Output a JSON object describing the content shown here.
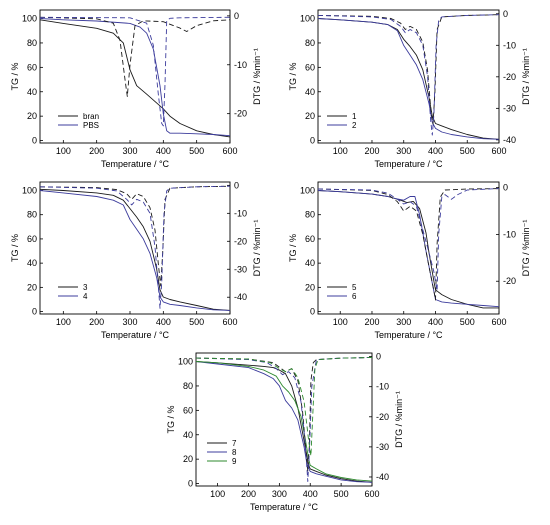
{
  "colors": {
    "black": "#1a1a1a",
    "blue": "#3c3c9c",
    "green": "#2e8a2e",
    "frame": "#000000"
  },
  "chart_data": [
    {
      "type": "line",
      "xlabel": "Temperature / °C",
      "ylabel": "TG / %",
      "y2label": "DTG / %min⁻¹",
      "xlim": [
        30,
        600
      ],
      "ylim": [
        -2,
        107
      ],
      "y2lim": [
        -26,
        1.2
      ],
      "xticks": [
        100,
        200,
        300,
        400,
        500,
        600
      ],
      "yticks": [
        0,
        20,
        40,
        60,
        80,
        100
      ],
      "y2ticks": [
        0,
        -10,
        -20
      ],
      "series": [
        {
          "name": "bran",
          "axis": "TG",
          "color": "black",
          "dash": false,
          "x": [
            30,
            100,
            200,
            250,
            280,
            300,
            320,
            350,
            400,
            420,
            450,
            500,
            550,
            600
          ],
          "y": [
            99,
            96,
            92,
            88,
            80,
            58,
            45,
            38,
            26,
            20,
            14,
            8,
            5,
            3
          ]
        },
        {
          "name": "PBS",
          "axis": "TG",
          "color": "blue",
          "dash": false,
          "x": [
            30,
            100,
            200,
            300,
            330,
            350,
            370,
            390,
            400,
            410,
            420,
            450,
            500,
            550,
            600
          ],
          "y": [
            100,
            99,
            98,
            96,
            93,
            88,
            75,
            45,
            22,
            8,
            6,
            6,
            5.5,
            5,
            4
          ]
        },
        {
          "name": "",
          "axis": "DTG",
          "color": "black",
          "dash": true,
          "x": [
            30,
            200,
            250,
            270,
            285,
            292,
            300,
            315,
            340,
            400,
            450,
            470,
            500,
            550,
            600
          ],
          "y": [
            -0.3,
            -0.6,
            -1.5,
            -5,
            -13,
            -16.5,
            -10,
            -2,
            -1,
            -1.2,
            -2.5,
            -3.2,
            -2,
            -1,
            -0.8
          ]
        },
        {
          "name": "",
          "axis": "DTG",
          "color": "blue",
          "dash": true,
          "x": [
            30,
            300,
            350,
            370,
            385,
            395,
            400,
            405,
            410,
            420,
            450,
            600
          ],
          "y": [
            -0.3,
            -0.4,
            -1.5,
            -6,
            -16,
            -22,
            -22.5,
            -14,
            -1,
            -0.5,
            -0.4,
            -0.3
          ]
        }
      ]
    },
    {
      "type": "line",
      "xlabel": "Temperature / °C",
      "ylabel": "TG / %",
      "y2label": "DTG / %min⁻¹",
      "xlim": [
        30,
        600
      ],
      "ylim": [
        -2,
        107
      ],
      "y2lim": [
        -41,
        1.2
      ],
      "xticks": [
        100,
        200,
        300,
        400,
        500,
        600
      ],
      "yticks": [
        0,
        20,
        40,
        60,
        80,
        100
      ],
      "y2ticks": [
        0,
        -10,
        -20,
        -30,
        -40
      ],
      "series": [
        {
          "name": "1",
          "axis": "TG",
          "color": "black",
          "dash": false,
          "x": [
            30,
            100,
            200,
            250,
            280,
            300,
            320,
            340,
            360,
            380,
            390,
            400,
            420,
            450,
            500,
            550,
            600
          ],
          "y": [
            100,
            99,
            97,
            95,
            91,
            83,
            77,
            70,
            58,
            35,
            20,
            14,
            12,
            9,
            5,
            2,
            1
          ]
        },
        {
          "name": "2",
          "axis": "TG",
          "color": "blue",
          "dash": false,
          "x": [
            30,
            100,
            200,
            250,
            280,
            300,
            320,
            340,
            360,
            380,
            390,
            400,
            420,
            450,
            500,
            550,
            600
          ],
          "y": [
            100,
            99,
            97,
            95,
            90,
            78,
            70,
            62,
            50,
            30,
            15,
            10,
            7,
            5,
            3,
            1.5,
            1
          ]
        },
        {
          "name": "",
          "axis": "DTG",
          "color": "black",
          "dash": true,
          "x": [
            30,
            200,
            260,
            290,
            305,
            320,
            340,
            360,
            375,
            385,
            392,
            398,
            405,
            420,
            500,
            600
          ],
          "y": [
            -0.5,
            -0.8,
            -1.5,
            -3,
            -5,
            -4,
            -5,
            -9,
            -18,
            -30,
            -35,
            -25,
            -5,
            -1,
            -0.5,
            -0.3
          ]
        },
        {
          "name": "",
          "axis": "DTG",
          "color": "blue",
          "dash": true,
          "x": [
            30,
            200,
            260,
            290,
            305,
            320,
            340,
            360,
            375,
            385,
            390,
            395,
            402,
            410,
            420,
            500,
            600
          ],
          "y": [
            -0.5,
            -1,
            -1.8,
            -4,
            -6,
            -5,
            -6,
            -10,
            -20,
            -34,
            -38.5,
            -32,
            -10,
            -2,
            -1,
            -0.5,
            -0.3
          ]
        }
      ]
    },
    {
      "type": "line",
      "xlabel": "Temperature / °C",
      "ylabel": "TG / %",
      "y2label": "DTG / %min⁻¹",
      "xlim": [
        30,
        600
      ],
      "ylim": [
        -2,
        107
      ],
      "y2lim": [
        -46,
        1.2
      ],
      "xticks": [
        100,
        200,
        300,
        400,
        500,
        600
      ],
      "yticks": [
        0,
        20,
        40,
        60,
        80,
        100
      ],
      "y2ticks": [
        0,
        -10,
        -20,
        -30,
        -40
      ],
      "series": [
        {
          "name": "3",
          "axis": "TG",
          "color": "black",
          "dash": false,
          "x": [
            30,
            100,
            200,
            250,
            280,
            300,
            320,
            340,
            360,
            380,
            390,
            400,
            420,
            450,
            500,
            550,
            600
          ],
          "y": [
            101,
            100,
            98,
            96,
            92,
            85,
            78,
            70,
            58,
            35,
            18,
            12,
            10,
            8,
            5,
            2,
            1
          ]
        },
        {
          "name": "4",
          "axis": "TG",
          "color": "blue",
          "dash": false,
          "x": [
            30,
            100,
            200,
            250,
            280,
            300,
            320,
            340,
            360,
            380,
            390,
            400,
            420,
            450,
            500,
            550,
            600
          ],
          "y": [
            100,
            98,
            95,
            92,
            88,
            76,
            68,
            60,
            48,
            28,
            12,
            8,
            6,
            5,
            3,
            1.5,
            1
          ]
        },
        {
          "name": "",
          "axis": "DTG",
          "color": "black",
          "dash": true,
          "x": [
            30,
            200,
            260,
            290,
            305,
            320,
            340,
            360,
            375,
            385,
            392,
            398,
            405,
            420,
            500,
            600
          ],
          "y": [
            -0.5,
            -0.8,
            -1.5,
            -3,
            -5,
            -3,
            -4,
            -8,
            -16,
            -28,
            -36,
            -24,
            -5,
            -1,
            -0.5,
            -0.3
          ]
        },
        {
          "name": "",
          "axis": "DTG",
          "color": "blue",
          "dash": true,
          "x": [
            30,
            200,
            260,
            290,
            305,
            320,
            340,
            360,
            375,
            385,
            390,
            395,
            402,
            410,
            420,
            500,
            600
          ],
          "y": [
            -0.5,
            -1,
            -2,
            -5,
            -7,
            -5,
            -6,
            -10,
            -22,
            -36,
            -44,
            -35,
            -10,
            -2,
            -1,
            -0.5,
            -0.3
          ]
        }
      ]
    },
    {
      "type": "line",
      "xlabel": "Temperature / °C",
      "ylabel": "TG / %",
      "y2label": "DTG / %min⁻¹",
      "xlim": [
        30,
        600
      ],
      "ylim": [
        -2,
        107
      ],
      "y2lim": [
        -27,
        1.2
      ],
      "xticks": [
        100,
        200,
        300,
        400,
        500,
        600
      ],
      "yticks": [
        0,
        20,
        40,
        60,
        80,
        100
      ],
      "y2ticks": [
        0,
        -10,
        -20
      ],
      "series": [
        {
          "name": "5",
          "axis": "TG",
          "color": "black",
          "dash": false,
          "x": [
            30,
            100,
            200,
            250,
            290,
            310,
            330,
            350,
            370,
            380,
            395,
            400,
            420,
            450,
            500,
            550,
            600
          ],
          "y": [
            100,
            99,
            97,
            95,
            92,
            90,
            91,
            85,
            65,
            48,
            25,
            18,
            14,
            10,
            6,
            3,
            3
          ]
        },
        {
          "name": "6",
          "axis": "TG",
          "color": "blue",
          "dash": false,
          "x": [
            30,
            100,
            200,
            250,
            280,
            300,
            320,
            335,
            350,
            370,
            385,
            400,
            420,
            450,
            500,
            550,
            600
          ],
          "y": [
            100,
            99,
            97,
            95,
            93,
            92,
            95,
            95,
            80,
            50,
            30,
            10,
            8,
            7,
            6,
            5,
            4
          ]
        },
        {
          "name": "",
          "axis": "DTG",
          "color": "black",
          "dash": true,
          "x": [
            30,
            200,
            250,
            280,
            300,
            320,
            340,
            360,
            380,
            395,
            400,
            405,
            415,
            430,
            500,
            600
          ],
          "y": [
            -0.3,
            -0.6,
            -1.5,
            -3,
            -5,
            -4,
            -5,
            -10,
            -17,
            -22,
            -24,
            -12,
            -2,
            -0.5,
            -0.3,
            -0.2
          ]
        },
        {
          "name": "",
          "axis": "DTG",
          "color": "blue",
          "dash": true,
          "x": [
            30,
            200,
            250,
            280,
            300,
            320,
            340,
            360,
            380,
            395,
            405,
            410,
            420,
            430,
            450,
            470,
            500,
            600
          ],
          "y": [
            -0.3,
            -0.5,
            -1.2,
            -2.5,
            -3.5,
            -3,
            -4,
            -9,
            -14,
            -18,
            -22,
            -10,
            -2,
            -1.5,
            -2.5,
            -1.5,
            -0.5,
            -0.2
          ]
        }
      ]
    },
    {
      "type": "line",
      "xlabel": "Temperature / °C",
      "ylabel": "TG / %",
      "y2label": "DTG / %min⁻¹",
      "xlim": [
        30,
        600
      ],
      "ylim": [
        -2,
        107
      ],
      "y2lim": [
        -43,
        1.2
      ],
      "xticks": [
        100,
        200,
        300,
        400,
        500,
        600
      ],
      "yticks": [
        0,
        20,
        40,
        60,
        80,
        100
      ],
      "y2ticks": [
        0,
        -10,
        -20,
        -30,
        -40
      ],
      "series": [
        {
          "name": "7",
          "axis": "TG",
          "color": "black",
          "dash": false,
          "x": [
            30,
            100,
            200,
            250,
            280,
            300,
            320,
            340,
            360,
            380,
            395,
            400,
            420,
            450,
            500,
            550,
            600
          ],
          "y": [
            100,
            99,
            97,
            96,
            95,
            93,
            90,
            80,
            62,
            35,
            15,
            12,
            10,
            7,
            4,
            2,
            1
          ]
        },
        {
          "name": "8",
          "axis": "TG",
          "color": "blue",
          "dash": false,
          "x": [
            30,
            100,
            200,
            250,
            280,
            300,
            320,
            340,
            360,
            380,
            390,
            400,
            420,
            450,
            500,
            550,
            600
          ],
          "y": [
            100,
            98,
            95,
            90,
            86,
            80,
            68,
            62,
            52,
            30,
            15,
            10,
            8,
            6,
            3,
            1.5,
            1
          ]
        },
        {
          "name": "9",
          "axis": "TG",
          "color": "green",
          "dash": false,
          "x": [
            30,
            100,
            200,
            250,
            290,
            310,
            330,
            350,
            370,
            385,
            395,
            400,
            420,
            450,
            500,
            550,
            600
          ],
          "y": [
            100,
            99,
            96,
            93,
            88,
            80,
            75,
            68,
            55,
            35,
            20,
            15,
            12,
            8,
            5,
            3,
            2
          ]
        },
        {
          "name": "",
          "axis": "DTG",
          "color": "black",
          "dash": true,
          "x": [
            30,
            200,
            280,
            320,
            340,
            360,
            375,
            385,
            392,
            397,
            402,
            410,
            420,
            500,
            600
          ],
          "y": [
            -0.5,
            -0.8,
            -2,
            -5,
            -4,
            -8,
            -18,
            -30,
            -38,
            -30,
            -8,
            -2,
            -1,
            -0.5,
            -0.3
          ]
        },
        {
          "name": "",
          "axis": "DTG",
          "color": "blue",
          "dash": true,
          "x": [
            30,
            200,
            260,
            290,
            310,
            330,
            350,
            370,
            380,
            388,
            392,
            398,
            405,
            420,
            500,
            600
          ],
          "y": [
            -0.5,
            -1,
            -2,
            -4,
            -6,
            -5,
            -7,
            -15,
            -25,
            -35,
            -41.5,
            -30,
            -10,
            -1,
            -0.5,
            -0.3
          ]
        },
        {
          "name": "",
          "axis": "DTG",
          "color": "green",
          "dash": true,
          "x": [
            30,
            200,
            270,
            300,
            320,
            340,
            360,
            380,
            395,
            402,
            408,
            415,
            425,
            500,
            600
          ],
          "y": [
            -0.5,
            -0.8,
            -2,
            -4,
            -5,
            -4,
            -7,
            -15,
            -28,
            -33,
            -20,
            -4,
            -1,
            -0.5,
            -0.3
          ]
        }
      ]
    }
  ]
}
